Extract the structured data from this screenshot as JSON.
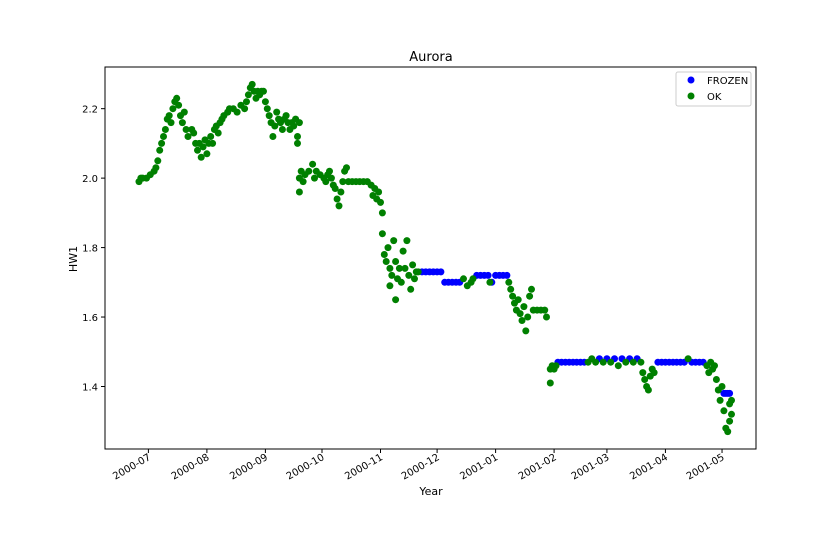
{
  "chart_data": {
    "type": "scatter",
    "title": "Aurora",
    "xlabel": "Year",
    "ylabel": "HW1",
    "xlim": [
      "2000-06-08",
      "2001-05-19"
    ],
    "ylim": [
      1.22,
      2.32
    ],
    "x_ticks": [
      "2000-07",
      "2000-08",
      "2000-09",
      "2000-10",
      "2000-11",
      "2000-12",
      "2001-01",
      "2001-02",
      "2001-03",
      "2001-04",
      "2001-05"
    ],
    "y_ticks": [
      "1.4",
      "1.6",
      "1.8",
      "2.0",
      "2.2"
    ],
    "grid": false,
    "legend_position": "upper right",
    "legend": [
      {
        "label": "FROZEN",
        "color": "#0000ff"
      },
      {
        "label": "OK",
        "color": "#008000"
      }
    ],
    "series": [
      {
        "name": "FROZEN",
        "color": "#0000ff",
        "points": [
          [
            "2000-11-23",
            1.73
          ],
          [
            "2000-11-25",
            1.73
          ],
          [
            "2000-11-27",
            1.73
          ],
          [
            "2000-11-29",
            1.73
          ],
          [
            "2000-12-01",
            1.73
          ],
          [
            "2000-12-03",
            1.73
          ],
          [
            "2000-12-05",
            1.7
          ],
          [
            "2000-12-07",
            1.7
          ],
          [
            "2000-12-09",
            1.7
          ],
          [
            "2000-12-11",
            1.7
          ],
          [
            "2000-12-13",
            1.7
          ],
          [
            "2000-12-22",
            1.72
          ],
          [
            "2000-12-24",
            1.72
          ],
          [
            "2000-12-26",
            1.72
          ],
          [
            "2000-12-28",
            1.72
          ],
          [
            "2000-12-30",
            1.7
          ],
          [
            "2001-01-01",
            1.72
          ],
          [
            "2001-01-03",
            1.72
          ],
          [
            "2001-01-05",
            1.72
          ],
          [
            "2001-01-07",
            1.72
          ],
          [
            "2001-02-03",
            1.47
          ],
          [
            "2001-02-05",
            1.47
          ],
          [
            "2001-02-07",
            1.47
          ],
          [
            "2001-02-09",
            1.47
          ],
          [
            "2001-02-11",
            1.47
          ],
          [
            "2001-02-13",
            1.47
          ],
          [
            "2001-02-15",
            1.47
          ],
          [
            "2001-02-17",
            1.47
          ],
          [
            "2001-02-25",
            1.48
          ],
          [
            "2001-03-01",
            1.48
          ],
          [
            "2001-03-05",
            1.48
          ],
          [
            "2001-03-09",
            1.48
          ],
          [
            "2001-03-13",
            1.48
          ],
          [
            "2001-03-17",
            1.48
          ],
          [
            "2001-03-28",
            1.47
          ],
          [
            "2001-03-30",
            1.47
          ],
          [
            "2001-04-01",
            1.47
          ],
          [
            "2001-04-03",
            1.47
          ],
          [
            "2001-04-05",
            1.47
          ],
          [
            "2001-04-07",
            1.47
          ],
          [
            "2001-04-09",
            1.47
          ],
          [
            "2001-04-11",
            1.47
          ],
          [
            "2001-04-15",
            1.47
          ],
          [
            "2001-04-17",
            1.47
          ],
          [
            "2001-04-19",
            1.47
          ],
          [
            "2001-04-21",
            1.47
          ],
          [
            "2001-05-02",
            1.38
          ],
          [
            "2001-05-03",
            1.38
          ],
          [
            "2001-05-04",
            1.38
          ],
          [
            "2001-05-05",
            1.38
          ]
        ]
      },
      {
        "name": "OK",
        "color": "#008000",
        "points": [
          [
            "2000-06-26",
            1.99
          ],
          [
            "2000-06-27",
            2.0
          ],
          [
            "2000-06-28",
            2.0
          ],
          [
            "2000-06-30",
            2.0
          ],
          [
            "2000-07-02",
            2.01
          ],
          [
            "2000-07-04",
            2.02
          ],
          [
            "2000-07-05",
            2.03
          ],
          [
            "2000-07-06",
            2.05
          ],
          [
            "2000-07-07",
            2.08
          ],
          [
            "2000-07-08",
            2.1
          ],
          [
            "2000-07-09",
            2.12
          ],
          [
            "2000-07-10",
            2.14
          ],
          [
            "2000-07-11",
            2.17
          ],
          [
            "2000-07-12",
            2.18
          ],
          [
            "2000-07-13",
            2.16
          ],
          [
            "2000-07-14",
            2.2
          ],
          [
            "2000-07-15",
            2.22
          ],
          [
            "2000-07-16",
            2.23
          ],
          [
            "2000-07-17",
            2.21
          ],
          [
            "2000-07-18",
            2.18
          ],
          [
            "2000-07-19",
            2.16
          ],
          [
            "2000-07-20",
            2.19
          ],
          [
            "2000-07-21",
            2.14
          ],
          [
            "2000-07-22",
            2.12
          ],
          [
            "2000-07-24",
            2.14
          ],
          [
            "2000-07-25",
            2.13
          ],
          [
            "2000-07-26",
            2.1
          ],
          [
            "2000-07-27",
            2.08
          ],
          [
            "2000-07-28",
            2.1
          ],
          [
            "2000-07-29",
            2.06
          ],
          [
            "2000-07-30",
            2.09
          ],
          [
            "2000-07-31",
            2.11
          ],
          [
            "2000-08-01",
            2.07
          ],
          [
            "2000-08-02",
            2.1
          ],
          [
            "2000-08-03",
            2.12
          ],
          [
            "2000-08-04",
            2.1
          ],
          [
            "2000-08-05",
            2.14
          ],
          [
            "2000-08-06",
            2.15
          ],
          [
            "2000-08-07",
            2.13
          ],
          [
            "2000-08-08",
            2.16
          ],
          [
            "2000-08-09",
            2.17
          ],
          [
            "2000-08-10",
            2.18
          ],
          [
            "2000-08-12",
            2.19
          ],
          [
            "2000-08-13",
            2.2
          ],
          [
            "2000-08-15",
            2.2
          ],
          [
            "2000-08-17",
            2.19
          ],
          [
            "2000-08-19",
            2.21
          ],
          [
            "2000-08-21",
            2.2
          ],
          [
            "2000-08-22",
            2.22
          ],
          [
            "2000-08-23",
            2.24
          ],
          [
            "2000-08-24",
            2.26
          ],
          [
            "2000-08-25",
            2.27
          ],
          [
            "2000-08-26",
            2.25
          ],
          [
            "2000-08-27",
            2.23
          ],
          [
            "2000-08-28",
            2.25
          ],
          [
            "2000-08-29",
            2.24
          ],
          [
            "2000-08-30",
            2.25
          ],
          [
            "2000-08-31",
            2.25
          ],
          [
            "2000-09-01",
            2.22
          ],
          [
            "2000-09-02",
            2.2
          ],
          [
            "2000-09-03",
            2.18
          ],
          [
            "2000-09-04",
            2.16
          ],
          [
            "2000-09-05",
            2.12
          ],
          [
            "2000-09-06",
            2.15
          ],
          [
            "2000-09-07",
            2.19
          ],
          [
            "2000-09-08",
            2.17
          ],
          [
            "2000-09-09",
            2.16
          ],
          [
            "2000-09-10",
            2.14
          ],
          [
            "2000-09-11",
            2.17
          ],
          [
            "2000-09-12",
            2.18
          ],
          [
            "2000-09-13",
            2.16
          ],
          [
            "2000-09-14",
            2.14
          ],
          [
            "2000-09-15",
            2.16
          ],
          [
            "2000-09-16",
            2.15
          ],
          [
            "2000-09-17",
            2.17
          ],
          [
            "2000-09-18",
            2.12
          ],
          [
            "2000-09-18",
            2.1
          ],
          [
            "2000-09-19",
            2.16
          ],
          [
            "2000-09-19",
            2.0
          ],
          [
            "2000-09-19",
            1.96
          ],
          [
            "2000-09-20",
            2.02
          ],
          [
            "2000-09-21",
            1.99
          ],
          [
            "2000-09-22",
            2.01
          ],
          [
            "2000-09-24",
            2.02
          ],
          [
            "2000-09-26",
            2.04
          ],
          [
            "2000-09-27",
            2.0
          ],
          [
            "2000-09-28",
            2.02
          ],
          [
            "2000-09-30",
            2.01
          ],
          [
            "2000-10-02",
            2.0
          ],
          [
            "2000-10-03",
            1.99
          ],
          [
            "2000-10-04",
            2.01
          ],
          [
            "2000-10-05",
            2.02
          ],
          [
            "2000-10-06",
            2.0
          ],
          [
            "2000-10-07",
            1.98
          ],
          [
            "2000-10-08",
            1.97
          ],
          [
            "2000-10-09",
            1.94
          ],
          [
            "2000-10-10",
            1.92
          ],
          [
            "2000-10-11",
            1.96
          ],
          [
            "2000-10-12",
            1.99
          ],
          [
            "2000-10-13",
            2.02
          ],
          [
            "2000-10-14",
            2.03
          ],
          [
            "2000-10-15",
            1.99
          ],
          [
            "2000-10-17",
            1.99
          ],
          [
            "2000-10-19",
            1.99
          ],
          [
            "2000-10-21",
            1.99
          ],
          [
            "2000-10-23",
            1.99
          ],
          [
            "2000-10-25",
            1.99
          ],
          [
            "2000-10-27",
            1.98
          ],
          [
            "2000-10-28",
            1.95
          ],
          [
            "2000-10-29",
            1.97
          ],
          [
            "2000-10-30",
            1.94
          ],
          [
            "2000-10-31",
            1.96
          ],
          [
            "2000-11-01",
            1.93
          ],
          [
            "2000-11-02",
            1.9
          ],
          [
            "2000-11-02",
            1.84
          ],
          [
            "2000-11-03",
            1.78
          ],
          [
            "2000-11-04",
            1.76
          ],
          [
            "2000-11-05",
            1.8
          ],
          [
            "2000-11-06",
            1.74
          ],
          [
            "2000-11-06",
            1.69
          ],
          [
            "2000-11-07",
            1.72
          ],
          [
            "2000-11-08",
            1.82
          ],
          [
            "2000-11-09",
            1.76
          ],
          [
            "2000-11-09",
            1.65
          ],
          [
            "2000-11-10",
            1.71
          ],
          [
            "2000-11-11",
            1.74
          ],
          [
            "2000-11-12",
            1.7
          ],
          [
            "2000-11-13",
            1.79
          ],
          [
            "2000-11-14",
            1.74
          ],
          [
            "2000-11-15",
            1.82
          ],
          [
            "2000-11-16",
            1.72
          ],
          [
            "2000-11-17",
            1.68
          ],
          [
            "2000-11-18",
            1.75
          ],
          [
            "2000-11-19",
            1.71
          ],
          [
            "2000-11-20",
            1.73
          ],
          [
            "2000-11-21",
            1.73
          ],
          [
            "2000-12-15",
            1.71
          ],
          [
            "2000-12-17",
            1.69
          ],
          [
            "2000-12-19",
            1.7
          ],
          [
            "2000-12-20",
            1.71
          ],
          [
            "2000-12-29",
            1.7
          ],
          [
            "2001-01-08",
            1.7
          ],
          [
            "2001-01-09",
            1.68
          ],
          [
            "2001-01-10",
            1.66
          ],
          [
            "2001-01-11",
            1.64
          ],
          [
            "2001-01-12",
            1.62
          ],
          [
            "2001-01-13",
            1.65
          ],
          [
            "2001-01-14",
            1.61
          ],
          [
            "2001-01-15",
            1.59
          ],
          [
            "2001-01-16",
            1.63
          ],
          [
            "2001-01-17",
            1.56
          ],
          [
            "2001-01-18",
            1.6
          ],
          [
            "2001-01-19",
            1.66
          ],
          [
            "2001-01-20",
            1.68
          ],
          [
            "2001-01-21",
            1.62
          ],
          [
            "2001-01-23",
            1.62
          ],
          [
            "2001-01-25",
            1.62
          ],
          [
            "2001-01-27",
            1.62
          ],
          [
            "2001-01-28",
            1.6
          ],
          [
            "2001-01-30",
            1.41
          ],
          [
            "2001-01-30",
            1.45
          ],
          [
            "2001-01-31",
            1.46
          ],
          [
            "2001-02-01",
            1.45
          ],
          [
            "2001-02-02",
            1.46
          ],
          [
            "2001-02-19",
            1.47
          ],
          [
            "2001-02-21",
            1.48
          ],
          [
            "2001-02-23",
            1.47
          ],
          [
            "2001-02-27",
            1.47
          ],
          [
            "2001-03-03",
            1.47
          ],
          [
            "2001-03-07",
            1.46
          ],
          [
            "2001-03-11",
            1.47
          ],
          [
            "2001-03-15",
            1.47
          ],
          [
            "2001-03-19",
            1.47
          ],
          [
            "2001-03-20",
            1.44
          ],
          [
            "2001-03-21",
            1.42
          ],
          [
            "2001-03-22",
            1.4
          ],
          [
            "2001-03-23",
            1.39
          ],
          [
            "2001-03-24",
            1.43
          ],
          [
            "2001-03-25",
            1.45
          ],
          [
            "2001-03-26",
            1.44
          ],
          [
            "2001-04-13",
            1.48
          ],
          [
            "2001-04-23",
            1.46
          ],
          [
            "2001-04-24",
            1.44
          ],
          [
            "2001-04-25",
            1.47
          ],
          [
            "2001-04-26",
            1.45
          ],
          [
            "2001-04-27",
            1.46
          ],
          [
            "2001-04-28",
            1.42
          ],
          [
            "2001-04-29",
            1.39
          ],
          [
            "2001-04-30",
            1.36
          ],
          [
            "2001-05-01",
            1.4
          ],
          [
            "2001-05-02",
            1.33
          ],
          [
            "2001-05-03",
            1.28
          ],
          [
            "2001-05-04",
            1.27
          ],
          [
            "2001-05-05",
            1.3
          ],
          [
            "2001-05-05",
            1.35
          ],
          [
            "2001-05-06",
            1.32
          ],
          [
            "2001-05-06",
            1.36
          ]
        ]
      }
    ]
  }
}
